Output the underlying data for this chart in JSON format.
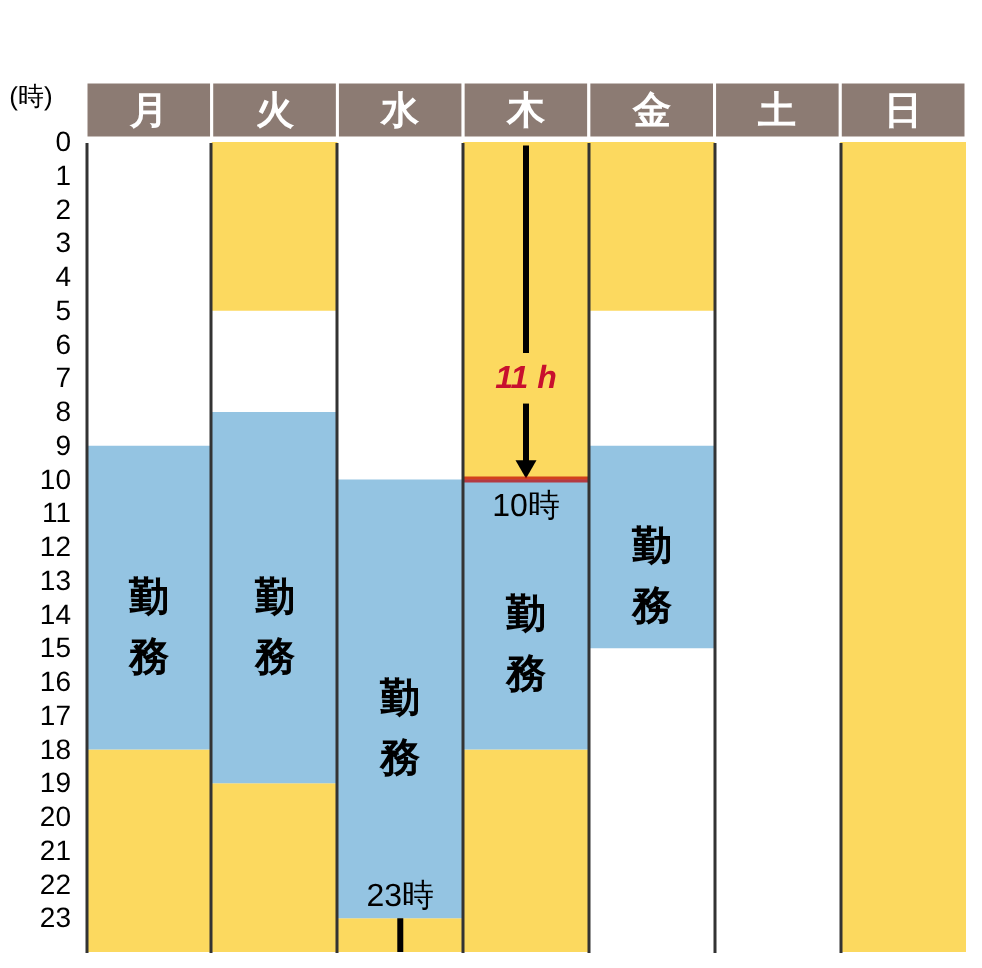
{
  "chart_data": {
    "type": "bar",
    "categories": [
      "月",
      "火",
      "水",
      "木",
      "金",
      "土",
      "日"
    ],
    "ylabel": "(時)",
    "ylim": [
      24,
      0
    ],
    "yticks": [
      0,
      1,
      2,
      3,
      4,
      5,
      6,
      7,
      8,
      9,
      10,
      11,
      12,
      13,
      14,
      15,
      16,
      17,
      18,
      19,
      20,
      21,
      22,
      23
    ],
    "grid": "x",
    "series": [
      {
        "color": "#fcd95f",
        "values": [
          null,
          5,
          null,
          10,
          5,
          null,
          24
        ],
        "base": [
          null,
          0,
          null,
          0,
          0,
          null,
          0
        ]
      },
      {
        "color": "#fcd95f",
        "values": [
          6,
          5,
          1,
          6,
          null,
          null,
          null
        ],
        "base": [
          18,
          19,
          23,
          18,
          null,
          null,
          null
        ]
      },
      {
        "name": "勤務",
        "color": "#94c4e2",
        "values": [
          9,
          11,
          13,
          8,
          6,
          null,
          null
        ],
        "base": [
          9,
          8,
          10,
          10,
          9,
          null,
          null
        ]
      }
    ],
    "annotations": [
      {
        "text": "11 h",
        "x": "木",
        "y": 10
      },
      {
        "text": "10時",
        "x": "木",
        "y": 10
      },
      {
        "text": "23時",
        "x": "水",
        "y": 23
      }
    ]
  }
}
